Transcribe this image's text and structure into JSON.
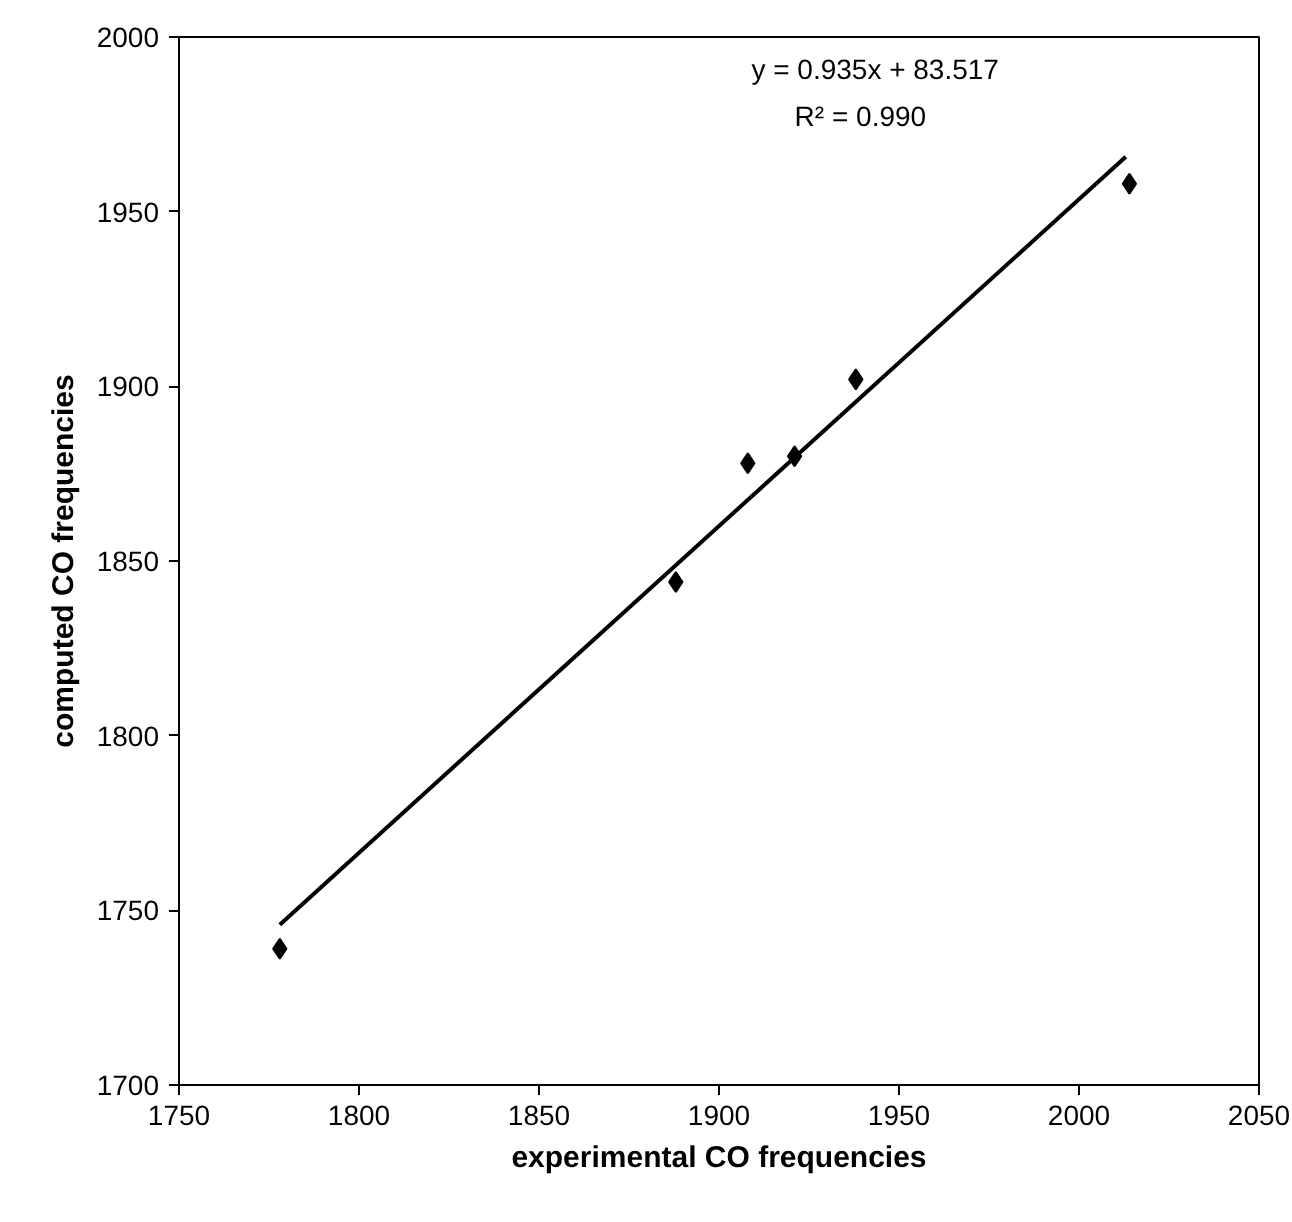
{
  "chart_data": {
    "type": "scatter",
    "xlabel": "experimental CO frequencies",
    "ylabel": "computed CO frequencies",
    "series": [
      {
        "type": "scatter",
        "color": "#000000",
        "marker": "diamond",
        "x": [
          1778,
          1888,
          1908,
          1921,
          1938,
          2014
        ],
        "values": [
          1739,
          1844,
          1878,
          1880,
          1902,
          1958
        ]
      },
      {
        "type": "line",
        "color": "#000000",
        "marker": "none",
        "line_style": "solid",
        "x": [
          1778,
          2013
        ],
        "values": [
          1745.9,
          1965.7
        ]
      }
    ],
    "annotations": [
      "y = 0.935x + 83.517",
      "R² = 0.990"
    ],
    "xlim": [
      1750,
      2050
    ],
    "ylim": [
      1700,
      2000
    ],
    "xticks": [
      1750,
      1800,
      1850,
      1900,
      1950,
      2000,
      2050
    ],
    "yticks": [
      1700,
      1750,
      1800,
      1850,
      1900,
      1950,
      2000
    ],
    "grid": false
  }
}
